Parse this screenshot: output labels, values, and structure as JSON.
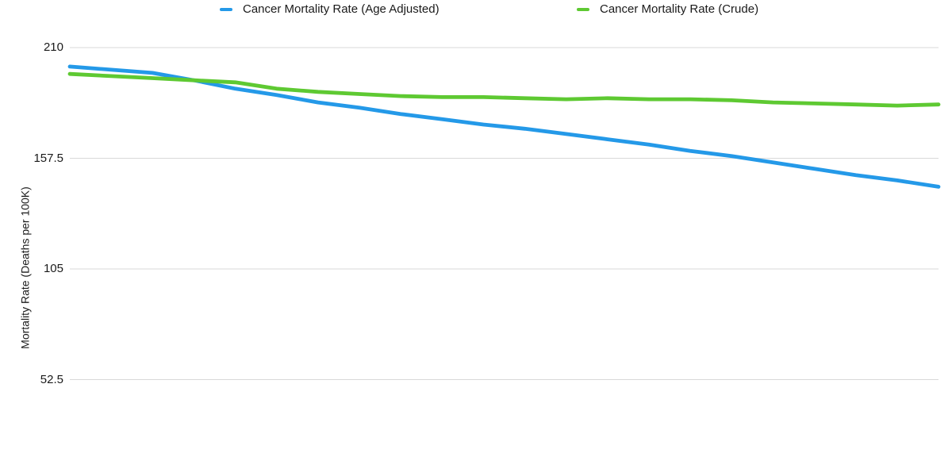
{
  "page": {
    "background": "#ffffff"
  },
  "legend": {
    "items": [
      {
        "label": "Cancer Mortality Rate (Age Adjusted)",
        "color": "#2499E8"
      },
      {
        "label": "Cancer Mortality Rate (Crude)",
        "color": "#5EC932"
      }
    ]
  },
  "y_axis": {
    "title": "Mortality Rate (Deaths per 100K)",
    "tick_labels": [
      "210",
      "157.5",
      "105",
      "52.5"
    ]
  },
  "chart_data": {
    "type": "line",
    "title": "",
    "xlabel": "",
    "ylabel": "Mortality Rate (Deaths per 100K)",
    "x": [
      1,
      2,
      3,
      4,
      5,
      6,
      7,
      8,
      9,
      10,
      11,
      12,
      13,
      14,
      15,
      16,
      17,
      18,
      19,
      20,
      21,
      22
    ],
    "x_tick_labels_visible": false,
    "series": [
      {
        "name": "Cancer Mortality Rate (Age Adjusted)",
        "color": "#2499E8",
        "values": [
          201,
          199.5,
          198,
          194.5,
          190.5,
          187.5,
          184,
          181.5,
          178.5,
          176,
          173.5,
          171.5,
          169,
          166.5,
          164,
          161,
          158.5,
          155.5,
          152.5,
          149.5,
          147,
          144
        ]
      },
      {
        "name": "Cancer Mortality Rate (Crude)",
        "color": "#5EC932",
        "values": [
          197.5,
          196.5,
          195.5,
          194.5,
          193.5,
          190.5,
          189,
          188,
          187,
          186.5,
          186.5,
          186,
          185.5,
          186,
          185.5,
          185.5,
          185,
          184,
          183.5,
          183,
          182.5,
          183
        ]
      }
    ],
    "yticks": [
      210,
      157.5,
      105,
      52.5
    ],
    "ylim": [
      0,
      210
    ],
    "grid": true,
    "gridline_color": "#d9d9d9",
    "legend_position": "top"
  }
}
